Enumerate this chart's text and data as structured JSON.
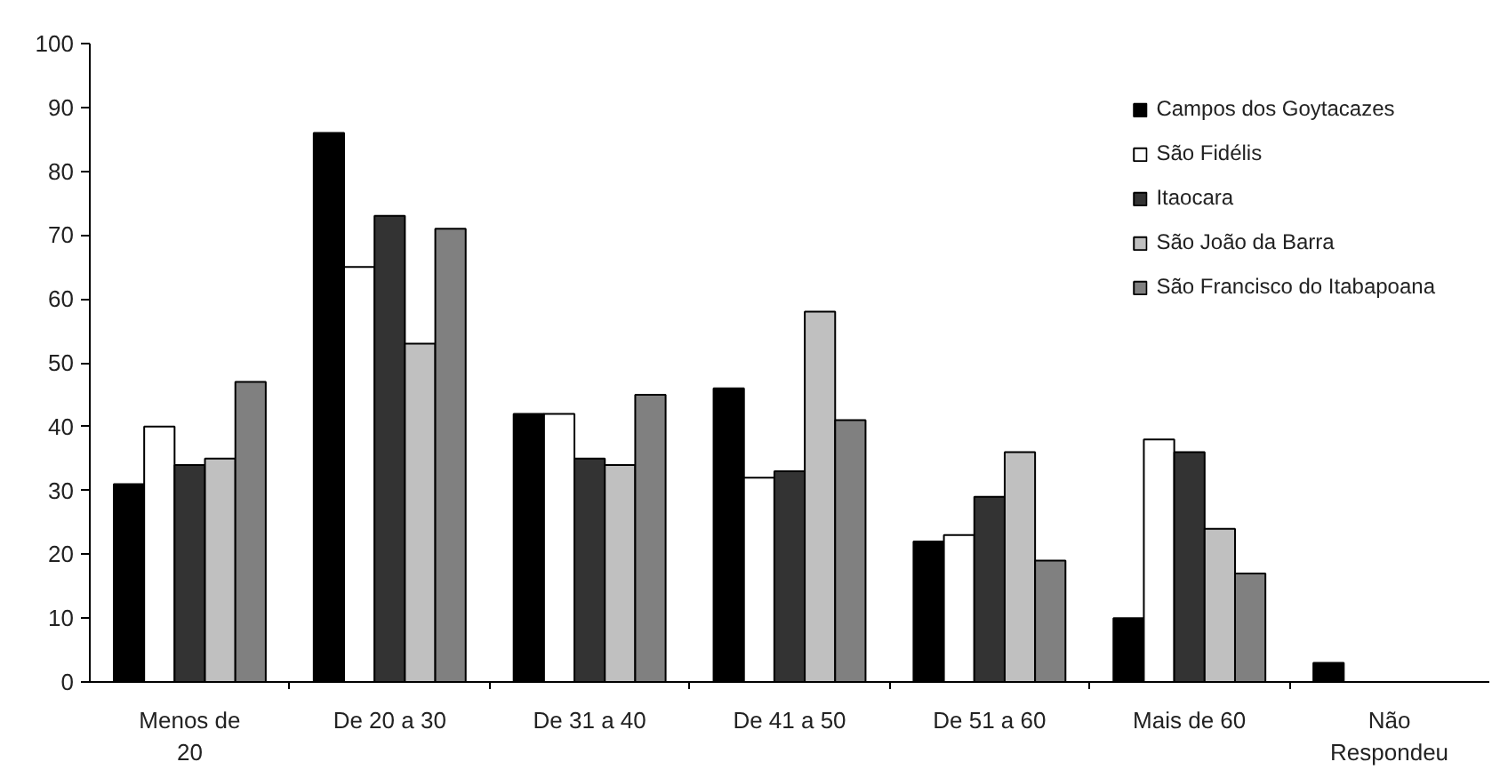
{
  "chart_data": {
    "type": "bar",
    "categories": [
      "Menos de 20",
      "De 20 a 30",
      "De 31 a 40",
      "De 41 a 50",
      "De 51 a 60",
      "Mais de 60",
      "Não Respondeu"
    ],
    "series": [
      {
        "name": "Campos dos Goytacazes",
        "color": "#000000",
        "values": [
          31,
          86,
          42,
          46,
          22,
          10,
          3
        ]
      },
      {
        "name": "São Fidélis",
        "color": "#ffffff",
        "values": [
          40,
          65,
          42,
          32,
          23,
          38,
          null
        ]
      },
      {
        "name": "Itaocara",
        "color": "#333333",
        "values": [
          34,
          73,
          35,
          33,
          29,
          36,
          null
        ]
      },
      {
        "name": "São João da Barra",
        "color": "#c0c0c0",
        "values": [
          35,
          53,
          34,
          58,
          36,
          24,
          null
        ]
      },
      {
        "name": "São Francisco do Itabapoana",
        "color": "#808080",
        "values": [
          47,
          71,
          45,
          41,
          19,
          17,
          null
        ]
      }
    ],
    "ylim": [
      0,
      100
    ],
    "yticks": [
      0,
      10,
      20,
      30,
      40,
      50,
      60,
      70,
      80,
      90,
      100
    ],
    "grid": false,
    "legend": "top right"
  }
}
